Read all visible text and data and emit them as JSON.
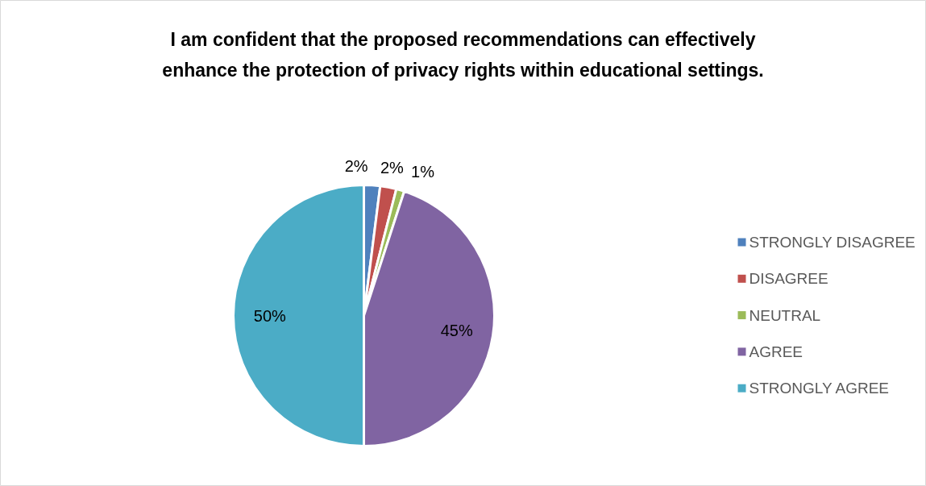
{
  "chart_data": {
    "type": "pie",
    "title": "I am confident that the proposed recommendations can effectively enhance the protection of privacy rights within educational settings.",
    "categories": [
      "STRONGLY DISAGREE",
      "DISAGREE",
      "NEUTRAL",
      "AGREE",
      "STRONGLY AGREE"
    ],
    "values": [
      2,
      2,
      1,
      45,
      50
    ],
    "colors": [
      "#4f81bd",
      "#c0504d",
      "#9bbb59",
      "#8064a2",
      "#4bacc6"
    ],
    "value_labels": [
      "2%",
      "2%",
      "1%",
      "45%",
      "50%"
    ],
    "legend": "right"
  }
}
